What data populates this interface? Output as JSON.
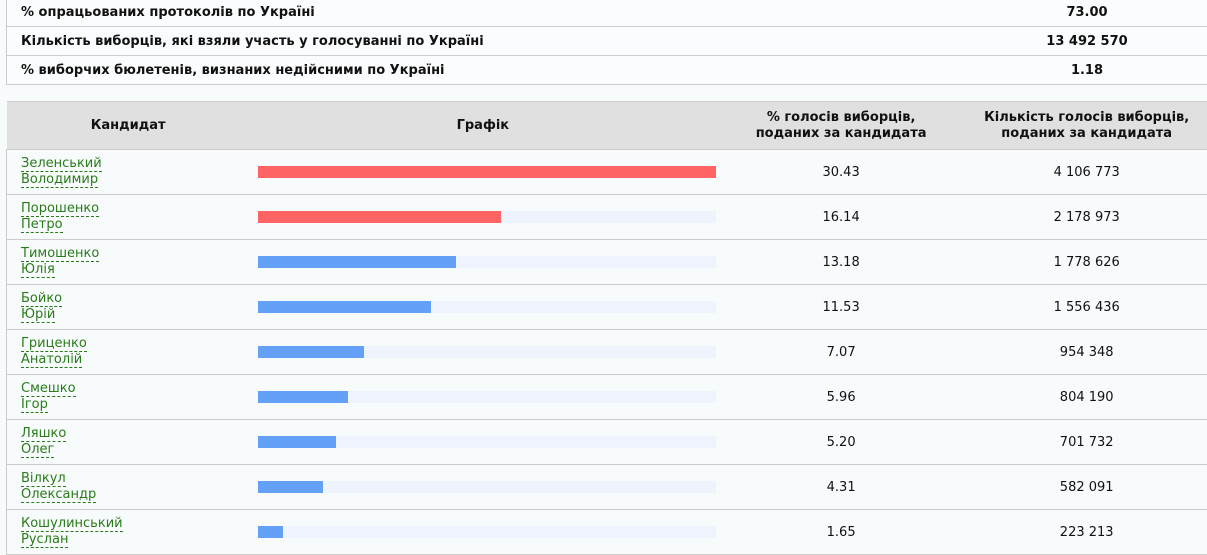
{
  "summary": [
    {
      "label": "% опрацьованих протоколів по Україні",
      "value": "73.00"
    },
    {
      "label": "Кількість виборців, які взяли участь у голосуванні по Україні",
      "value": "13 492 570"
    },
    {
      "label": "% виборчих бюлетенів, визнаних недійсними по Україні",
      "value": "1.18"
    }
  ],
  "headers": {
    "candidate": "Кандидат",
    "graph": "Графік",
    "pct_line1": "% голосів виборців,",
    "pct_line2": "поданих за кандидата",
    "count_line1": "Кількість голосів виборців,",
    "count_line2": "поданих за кандидата"
  },
  "colors": {
    "leader": "#ff6464",
    "other": "#64a0f5",
    "track": "#eef3fd",
    "link": "#2a7a1a"
  },
  "candidates": [
    {
      "surname": "Зеленський",
      "name": "Володимир",
      "pct": "30.43",
      "votes": "4 106 773",
      "leader": true
    },
    {
      "surname": "Порошенко",
      "name": "Петро",
      "pct": "16.14",
      "votes": "2 178 973",
      "leader": true
    },
    {
      "surname": "Тимошенко",
      "name": "Юлія",
      "pct": "13.18",
      "votes": "1 778 626",
      "leader": false
    },
    {
      "surname": "Бойко",
      "name": "Юрій",
      "pct": "11.53",
      "votes": "1 556 436",
      "leader": false
    },
    {
      "surname": "Гриценко",
      "name": "Анатолій",
      "pct": "7.07",
      "votes": "954 348",
      "leader": false
    },
    {
      "surname": "Смешко",
      "name": "Ігор",
      "pct": "5.96",
      "votes": "804 190",
      "leader": false
    },
    {
      "surname": "Ляшко",
      "name": "Олег",
      "pct": "5.20",
      "votes": "701 732",
      "leader": false
    },
    {
      "surname": "Вілкул",
      "name": "Олександр",
      "pct": "4.31",
      "votes": "582 091",
      "leader": false
    },
    {
      "surname": "Кошулинський",
      "name": "Руслан",
      "pct": "1.65",
      "votes": "223 213",
      "leader": false
    }
  ]
}
